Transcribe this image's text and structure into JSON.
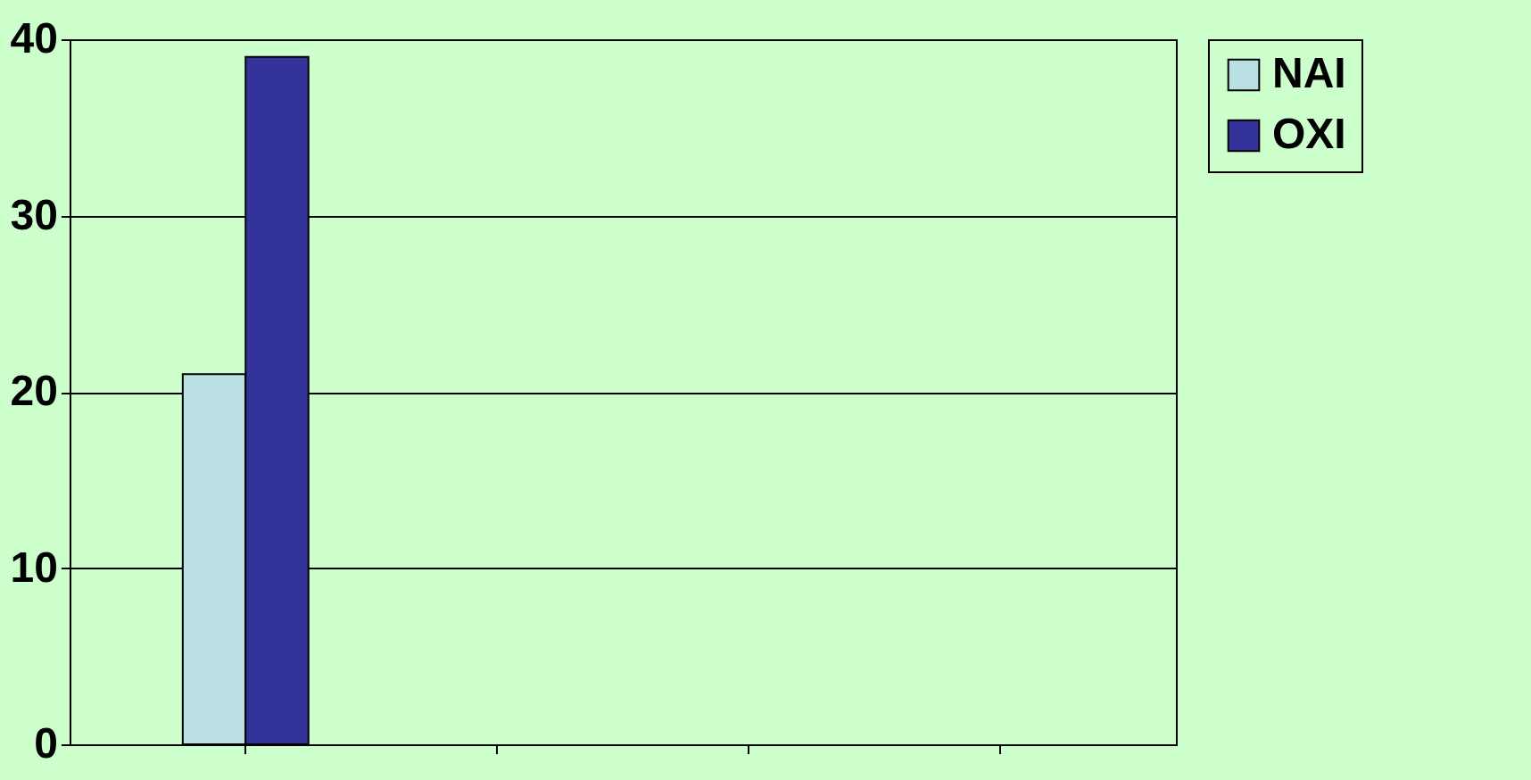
{
  "chart_data": {
    "type": "bar",
    "categories": [
      null,
      null,
      null,
      null
    ],
    "series": [
      {
        "name": "NAI",
        "color": "#bbe0e3",
        "values": [
          21,
          null,
          null,
          null
        ]
      },
      {
        "name": "OXI",
        "color": "#333399",
        "values": [
          39,
          null,
          null,
          null
        ]
      }
    ],
    "ylim": [
      0,
      40
    ],
    "yticks": [
      0,
      10,
      20,
      30,
      40
    ],
    "grid": "y",
    "legend": "right"
  }
}
